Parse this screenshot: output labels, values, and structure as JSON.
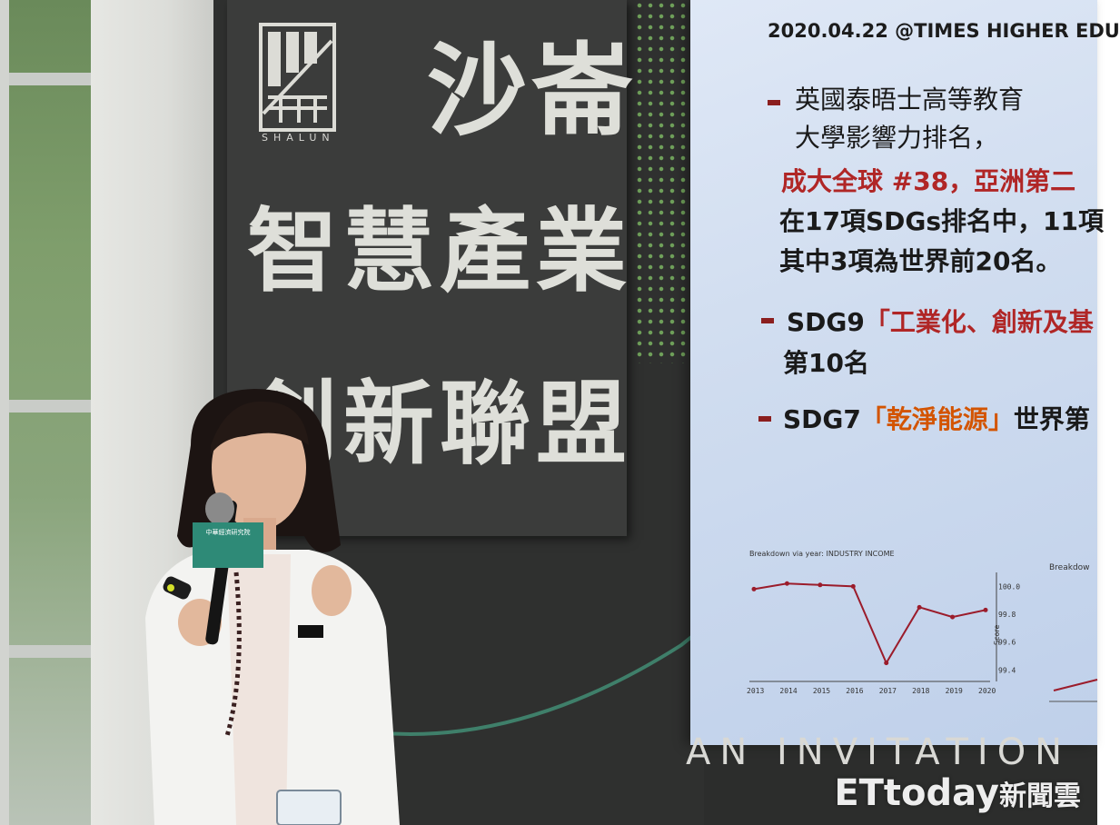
{
  "sign": {
    "logo_text": "SHALUN",
    "line1": "沙崙",
    "line2": "智慧產業",
    "line3": "創新聯盟"
  },
  "slide": {
    "header": "2020.04.22 @TIMES HIGHER EDU",
    "bullet1_line1": "英國泰晤士高等教育",
    "bullet1_line2": "大學影響力排名，",
    "bullet1_line3": "成大全球 #38，亞洲第二",
    "bullet1_line4": "在17項SDGs排名中，11項",
    "bullet1_line5": "其中3項為世界前20名。",
    "bullet2_line1_prefix": "SDG9",
    "bullet2_line1_highlight": "「工業化、創新及基",
    "bullet2_line2": "第10名",
    "bullet3_prefix": "SDG7",
    "bullet3_highlight": "「乾淨能源」",
    "bullet3_suffix": "世界第",
    "chart_caption": "Breakdown via year: INDUSTRY INCOME",
    "chart_caption_right": "Breakdow",
    "y_axis_label": "Score",
    "accent_color": "#8b1e1e",
    "highlight_color": "#c0392b",
    "orange_color": "#d35400"
  },
  "chart_data": {
    "type": "line",
    "title": "Breakdown via year: INDUSTRY INCOME",
    "x": [
      "2013",
      "2014",
      "2015",
      "2016",
      "2017",
      "2018",
      "2019",
      "2020"
    ],
    "series": [
      {
        "values": [
          99.98,
          100.02,
          100.01,
          100.0,
          99.45,
          99.85,
          99.78,
          99.83
        ]
      }
    ],
    "ylabel": "Score",
    "yticks": [
      "100.0",
      "99.8",
      "99.6",
      "99.4"
    ],
    "ylim": [
      99.35,
      100.1
    ]
  },
  "backdrop_text": "AN INVITATION",
  "watermark": {
    "brand": "ETtoday",
    "cn": "新聞雲"
  },
  "microphone_label": "中華經濟研究院"
}
